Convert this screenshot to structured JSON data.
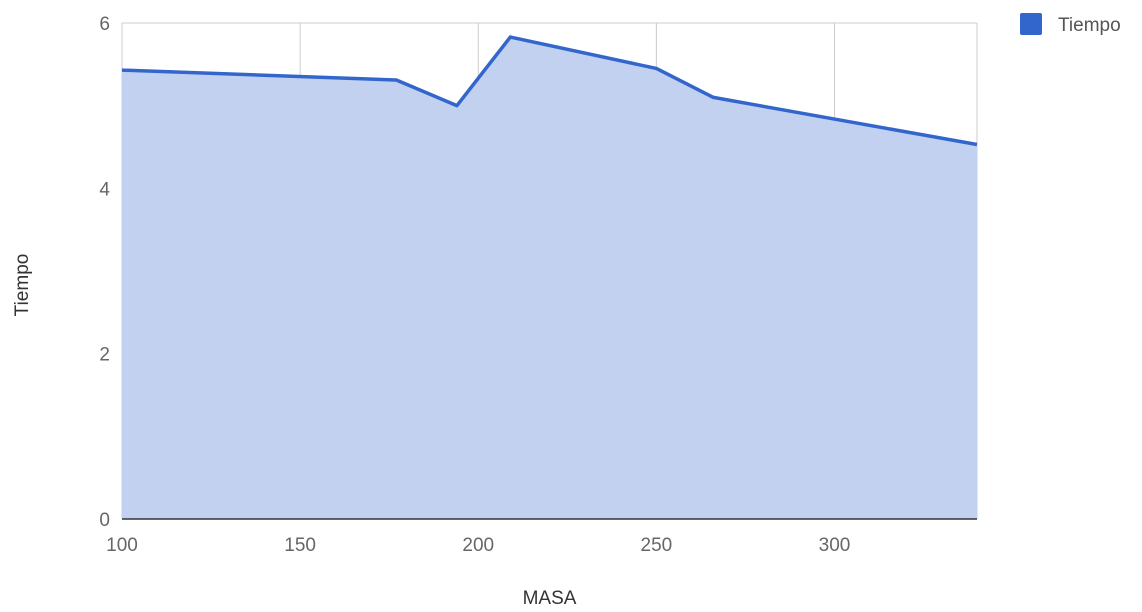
{
  "chart_data": {
    "type": "area",
    "title": "",
    "xlabel": "MASA",
    "ylabel": "Tiempo",
    "xlim": [
      100,
      340
    ],
    "ylim": [
      0,
      6
    ],
    "x_ticks": [
      "100",
      "150",
      "200",
      "250",
      "300"
    ],
    "y_ticks": [
      "0",
      "2",
      "4",
      "6"
    ],
    "grid": true,
    "legend_position": "top-right",
    "series": [
      {
        "name": "Tiempo",
        "color": "#3366cc",
        "fill_color": "#c2d1f0",
        "x": [
          100,
          177,
          194,
          209,
          250,
          266,
          340
        ],
        "y": [
          5.43,
          5.31,
          5.0,
          5.83,
          5.45,
          5.1,
          4.53
        ]
      }
    ]
  }
}
